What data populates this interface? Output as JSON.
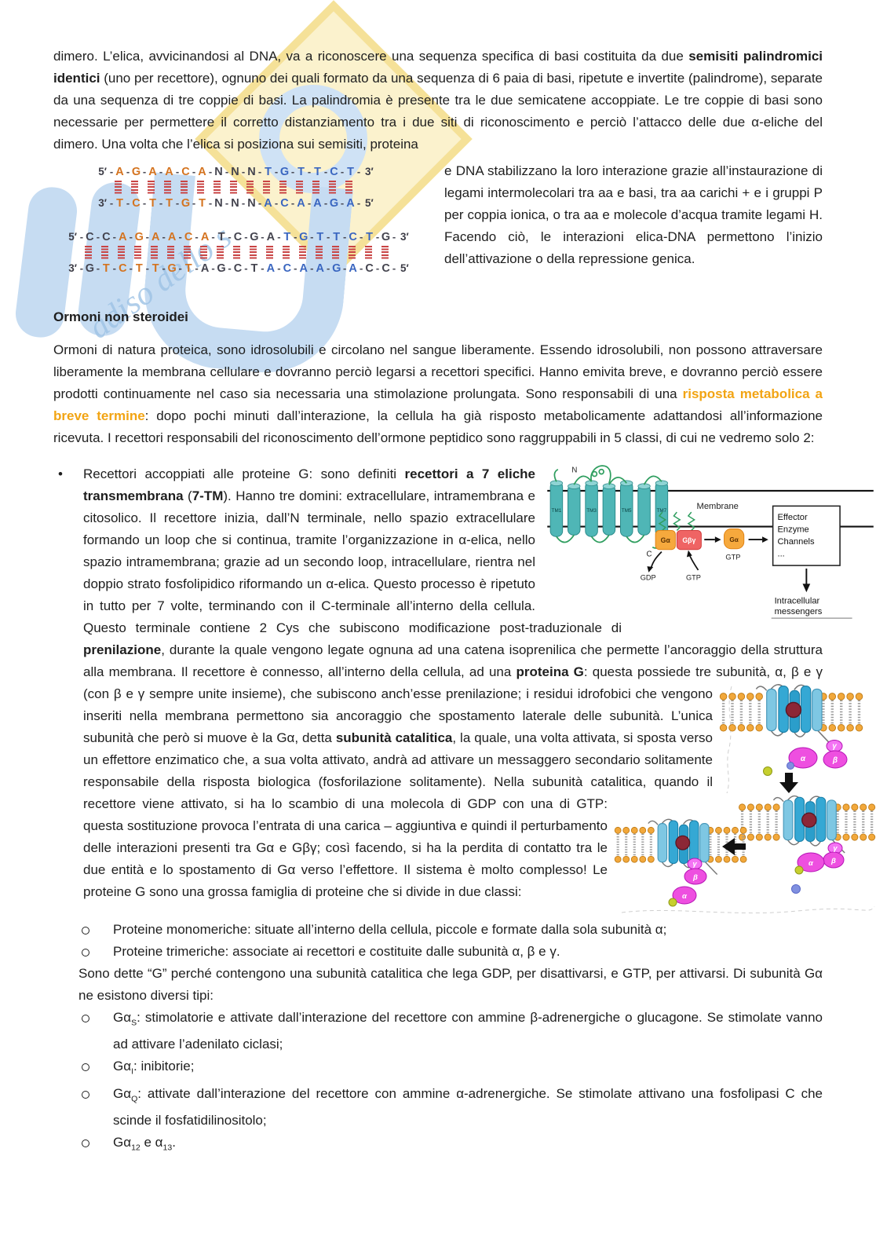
{
  "heading": "Ormoni non steroidei",
  "para1": [
    {
      "t": "dimero. L’elica, avvicinandosi al DNA, va a riconoscere una sequenza specifica di basi costituita da due "
    },
    {
      "t": "semisiti palindromici identici",
      "b": true
    },
    {
      "t": " (uno per recettore), ognuno dei quali formato da una sequenza di 6 paia di basi, ripetute e invertite (palindrome), separate da una sequenza di tre coppie di basi. La palindromia è presente tra le due semicatene accoppiate. Le tre coppie di basi sono necessarie per permettere il corretto distanziamento tra i due siti di riconoscimento e perciò l’attacco delle due α-eliche del dimero. Una volta che l’elica si posiziona sui semisiti, proteina"
    }
  ],
  "side_text": "e DNA stabilizzano la loro interazione grazie all’instaurazione di legami intermolecolari tra aa e basi, tra aa carichi + e i gruppi P per coppia ionica, o tra aa e molecole d’acqua tramite legami H. Facendo ciò, le interazioni elica-DNA permettono l’inizio dell’attivazione o della repressione genica.",
  "dna": {
    "bond_color": "#c94444",
    "half_site_color_left": "#d4731f",
    "half_site_color_right": "#3a66c0",
    "spacer_color": "#44444f",
    "sequences": [
      {
        "indent": 38,
        "top": {
          "pre": "5′",
          "letters": "AGAACANNNTGTTCT",
          "colors": "oooooodddbbbbbb",
          "suf": "3′"
        },
        "bottom": {
          "pre": "3′",
          "letters": "TCTTGTNNNACAAGA",
          "colors": "oooooodddbbbbbb",
          "suf": "5′"
        }
      },
      {
        "indent": 0,
        "top": {
          "pre": "5′",
          "letters": "CCAGAACATCGATGTTCTG",
          "colors": "ddooooooddddbbbbbbd",
          "suf": "3′"
        },
        "bottom": {
          "pre": "3′",
          "letters": "GTCTTGTAGCTACAAGACC",
          "colors": "dooooooddddbbbbbbdd",
          "suf": "5′"
        }
      }
    ]
  },
  "para2": [
    {
      "t": "Ormoni di natura proteica, sono idrosolubili e circolano nel sangue liberamente. Essendo idrosolubili, non possono attraversare liberamente la membrana cellulare e dovranno perciò legarsi a recettori specifici. Hanno emivita breve, e dovranno perciò essere prodotti continuamente nel caso sia necessaria una stimolazione prolungata. Sono responsabili di una "
    },
    {
      "t": "risposta metabolica a breve termine",
      "o": true
    },
    {
      "t": ": dopo pochi minuti dall’interazione, la cellula ha già risposto metabolicamente adattandosi all’informazione ricevuta. I recettori responsabili del riconoscimento dell’ormone peptidico sono raggruppabili in 5 classi, di cui ne vedremo solo 2:"
    }
  ],
  "bullet1": {
    "marker": "•",
    "part1": [
      {
        "t": "Recettori accoppiati alle proteine G: sono definiti "
      },
      {
        "t": "recettori a 7 eliche transmembrana",
        "b": true
      },
      {
        "t": " ("
      },
      {
        "t": "7-TM",
        "b": true
      },
      {
        "t": "). Hanno tre domini: extracellulare, intramembrana e citosolico. Il recettore inizia, dall’N terminale, nello spazio extracellulare formando un loop che si continua, tramite l’organizzazione in α-elica, nello spazio intramembrana; grazie ad un secondo loop, intracellulare, rientra nel doppio strato fosfolipidico riformando un α-elica. Questo processo è ripetuto in tutto per 7 volte, terminando con il C-terminale all’interno della cellula. Questo terminale contiene 2 Cys che subiscono modificazione post-traduzionale di "
      },
      {
        "t": "prenilazione",
        "b": true
      },
      {
        "t": ", durante la quale vengono legate ognuna ad una catena isoprenilica che permette l’ancoraggio della struttura alla membrana. Il recettore è connesso, all’interno della cellula, ad una "
      },
      {
        "t": "proteina G",
        "b": true
      },
      {
        "t": ": questa possiede tre subunità, α, β e γ (con β e γ sempre unite insieme), che subiscono anch’esse prenilazione; i "
      }
    ],
    "part2": [
      {
        "t": "residui idrofobici che vengono inseriti nella membrana permettono sia ancoraggio che spostamento laterale delle subunità. L’unica subunità che però si muove è la Gα, detta "
      },
      {
        "t": "subunità catalitica",
        "b": true
      },
      {
        "t": ", la quale, una volta attivata, si sposta verso un effettore enzimatico che, a sua volta attivato, andrà ad attivare un messaggero secondario solitamente responsabile della risposta biologica (fosforilazione solitamente). Nella subunità catalitica, quando il recettore viene attivato, si ha lo scambio di una molecola di GDP con una di GTP: questa sostituzione provoca l’entrata di una carica – aggiuntiva e quindi il perturbamento delle interazioni presenti tra Gα e Gβγ; così facendo, si ha la perdita di contatto tra le due entità e lo spostamento di Gα verso l’effettore. Il sistema è molto complesso! Le proteine G sono una grossa famiglia di proteine che si divide in due classi:"
      }
    ]
  },
  "sub_bullets_classes": [
    [
      {
        "t": "Proteine monomeriche: situate all’interno della cellula, piccole e formate dalla sola subunità α;"
      }
    ],
    [
      {
        "t": "Proteine trimeriche: associate ai recettori e costituite dalle subunità α, β e γ."
      }
    ]
  ],
  "para3": [
    {
      "t": "Sono dette “G” perché contengono una subunità catalitica che lega GDP, per disattivarsi, e GTP, per attivarsi. Di subunità Gα ne esistono diversi tipi:"
    }
  ],
  "sub_bullets_galpha": [
    [
      {
        "t": "Gα"
      },
      {
        "t": "S",
        "sub": true
      },
      {
        "t": ": stimolatorie e attivate dall’interazione del recettore con ammine β-adrenergiche o glucagone. Se stimolate vanno ad attivare l’adenilato ciclasi;"
      }
    ],
    [
      {
        "t": "Gα"
      },
      {
        "t": "I",
        "sub": true
      },
      {
        "t": ": inibitorie;"
      }
    ],
    [
      {
        "t": "Gα"
      },
      {
        "t": "Q",
        "sub": true
      },
      {
        "t": ": attivate dall’interazione del recettore con ammine α-adrenergiche. Se stimolate attivano una fosfolipasi C che scinde il fosfatidilinositolo;"
      }
    ],
    [
      {
        "t": "Gα"
      },
      {
        "t": "12",
        "sub": true
      },
      {
        "t": " e α"
      },
      {
        "t": "13",
        "sub": true
      },
      {
        "t": "."
      }
    ]
  ],
  "figure1": {
    "n_label": "N",
    "c_label": "C",
    "membrane": "Membrane",
    "tm": [
      "TM1",
      "TM3",
      "TM5",
      "TM7"
    ],
    "galpha_box": "Gα",
    "gbetagamma_box": "Gβγ",
    "gdp": "GDP",
    "gtp": "GTP",
    "galpha_active": "Gα",
    "gtp_active": "GTP",
    "effector": [
      "Effector",
      "Enzyme",
      "Channels",
      "..."
    ],
    "intracellular": [
      "Intracellular",
      "messengers"
    ],
    "receptor_color": "#4fb6b6",
    "galpha_color": "#f6a93d",
    "gbetagamma_color": "#ef6464"
  },
  "figure2": {
    "alpha": "α",
    "beta": "β",
    "gamma": "γ",
    "subunit_color": "#ee4fe0",
    "receptor_color": "#35a8d4"
  },
  "watermark": {
    "tagline_fragment": "adiso dello s",
    "logo_blue": "#c6dcf2",
    "diamond_yellow": "#fbf2cb"
  }
}
